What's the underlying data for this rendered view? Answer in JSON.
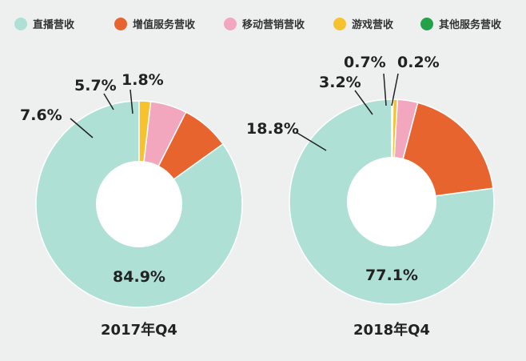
{
  "chart_data": [
    {
      "type": "pie",
      "variant": "donut",
      "title": "2017年Q4",
      "categories": [
        "直播营收",
        "增值服务营收",
        "移动营销营收",
        "游戏营收",
        "其他服务营收"
      ],
      "values": [
        84.9,
        7.6,
        5.7,
        1.8,
        0.0
      ],
      "labels": [
        "84.9%",
        "7.6%",
        "5.7%",
        "1.8%",
        ""
      ]
    },
    {
      "type": "pie",
      "variant": "donut",
      "title": "2018年Q4",
      "categories": [
        "直播营收",
        "增值服务营收",
        "移动营销营收",
        "游戏营收",
        "其他服务营收"
      ],
      "values": [
        77.1,
        18.8,
        3.2,
        0.7,
        0.2
      ],
      "labels": [
        "77.1%",
        "18.8%",
        "3.2%",
        "0.7%",
        "0.2%"
      ]
    }
  ],
  "legend": {
    "items": [
      {
        "label": "直播营收",
        "color": "#aee0d6"
      },
      {
        "label": "增值服务营收",
        "color": "#e8642e"
      },
      {
        "label": "移动营销营收",
        "color": "#f2a7be"
      },
      {
        "label": "游戏营收",
        "color": "#f6c22d"
      },
      {
        "label": "其他服务营收",
        "color": "#23a24a"
      }
    ]
  }
}
